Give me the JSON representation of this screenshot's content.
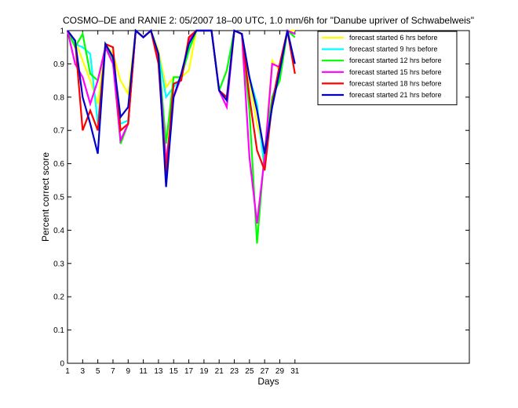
{
  "chart_data": {
    "type": "line",
    "title": "COSMO–DE and RANIE 2: 05/2007 18–00 UTC, 1.0 mm/6h for \"Danube upriver of Schwabelweis\"",
    "xlabel": "Days",
    "ylabel": "Percent correct score",
    "xlim": [
      1,
      54
    ],
    "ylim": [
      0,
      1
    ],
    "xticks": [
      1,
      3,
      5,
      7,
      9,
      11,
      13,
      15,
      17,
      19,
      21,
      23,
      25,
      27,
      29,
      31
    ],
    "yticks": [
      0,
      0.1,
      0.2,
      0.3,
      0.4,
      0.5,
      0.6,
      0.7,
      0.8,
      0.9,
      1
    ],
    "ytick_labels": [
      "0",
      "0.1",
      "0.2",
      "0.3",
      "0.4",
      "0.5",
      "0.6",
      "0.7",
      "0.8",
      "0.9",
      "1"
    ],
    "legend_position": "top-right",
    "x": [
      1,
      2,
      3,
      4,
      5,
      6,
      7,
      8,
      9,
      10,
      11,
      12,
      13,
      14,
      15,
      16,
      17,
      18,
      19,
      20,
      21,
      22,
      23,
      24,
      25,
      26,
      27,
      28,
      29,
      30,
      31
    ],
    "series": [
      {
        "name": "forecast started 6 hrs before",
        "color": "#ffff00",
        "values": [
          1.0,
          0.97,
          0.91,
          0.85,
          0.78,
          0.96,
          0.93,
          0.85,
          0.81,
          1.0,
          0.98,
          1.0,
          0.94,
          0.83,
          0.86,
          0.86,
          0.88,
          1.0,
          1.0,
          1.0,
          0.82,
          0.8,
          1.0,
          0.99,
          0.85,
          0.72,
          0.63,
          0.91,
          0.88,
          1.0,
          1.0
        ]
      },
      {
        "name": "forecast started 9 hrs before",
        "color": "#00ffff",
        "values": [
          1.0,
          0.96,
          0.95,
          0.93,
          0.72,
          0.96,
          0.92,
          0.72,
          0.73,
          1.0,
          0.98,
          1.0,
          0.93,
          0.8,
          0.83,
          0.86,
          0.95,
          1.0,
          1.0,
          1.0,
          0.82,
          0.8,
          1.0,
          0.99,
          0.86,
          0.78,
          0.58,
          0.8,
          0.87,
          1.0,
          0.99
        ]
      },
      {
        "name": "forecast started 12 hrs before",
        "color": "#00ff00",
        "values": [
          1.0,
          0.95,
          0.99,
          0.87,
          0.85,
          0.95,
          0.91,
          0.66,
          0.72,
          1.0,
          0.98,
          1.0,
          0.93,
          0.66,
          0.86,
          0.86,
          0.94,
          1.0,
          1.0,
          1.0,
          0.82,
          0.88,
          1.0,
          0.99,
          0.76,
          0.36,
          0.64,
          0.8,
          0.85,
          1.0,
          0.98
        ]
      },
      {
        "name": "forecast started 15 hrs before",
        "color": "#ff00ff",
        "values": [
          1.0,
          0.9,
          0.86,
          0.78,
          0.85,
          0.95,
          0.9,
          0.67,
          0.72,
          1.0,
          0.98,
          1.0,
          0.92,
          0.6,
          0.8,
          0.86,
          0.97,
          1.0,
          1.0,
          1.0,
          0.82,
          0.77,
          1.0,
          0.99,
          0.62,
          0.42,
          0.62,
          0.9,
          0.89,
          1.0,
          0.99
        ]
      },
      {
        "name": "forecast started 18 hrs before",
        "color": "#ff0000",
        "values": [
          1.0,
          0.97,
          0.7,
          0.76,
          0.7,
          0.96,
          0.95,
          0.7,
          0.72,
          1.0,
          0.98,
          1.0,
          0.9,
          0.57,
          0.84,
          0.85,
          0.98,
          1.0,
          1.0,
          1.0,
          0.82,
          0.8,
          1.0,
          0.99,
          0.8,
          0.64,
          0.58,
          0.78,
          0.9,
          1.0,
          0.87
        ]
      },
      {
        "name": "forecast started 21 hrs before",
        "color": "#0000cc",
        "values": [
          1.0,
          0.97,
          0.8,
          0.72,
          0.63,
          0.96,
          0.92,
          0.74,
          0.77,
          1.0,
          0.98,
          1.0,
          0.93,
          0.53,
          0.8,
          0.87,
          0.96,
          1.0,
          1.0,
          1.0,
          0.82,
          0.79,
          1.0,
          0.99,
          0.86,
          0.76,
          0.63,
          0.77,
          0.88,
          1.0,
          0.9
        ]
      }
    ]
  }
}
